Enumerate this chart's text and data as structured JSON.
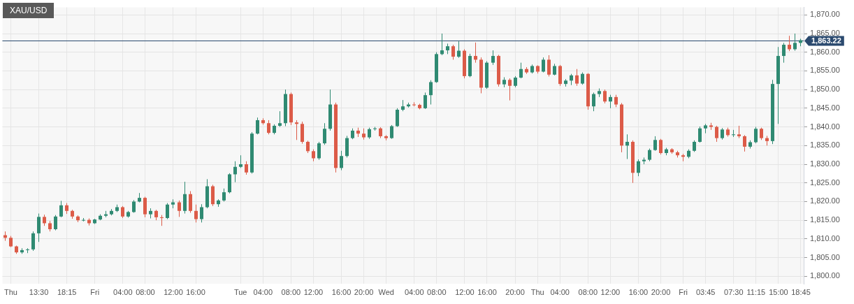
{
  "chart_data": {
    "type": "candlestick",
    "title": "XAU/USD",
    "categories": [
      null,
      "Thu",
      null,
      null,
      null,
      null,
      "13:30",
      null,
      null,
      null,
      null,
      "18:15",
      null,
      null,
      null,
      null,
      "Fri",
      null,
      null,
      null,
      null,
      "04:00",
      null,
      null,
      null,
      "08:00",
      null,
      null,
      null,
      null,
      "12:00",
      null,
      null,
      null,
      "16:00",
      null,
      null,
      null,
      null,
      null,
      null,
      null,
      "Tue",
      null,
      null,
      null,
      "04:00",
      null,
      null,
      null,
      null,
      "08:00",
      null,
      null,
      null,
      "12:00",
      null,
      null,
      null,
      null,
      "16:00",
      null,
      null,
      null,
      "20:00",
      null,
      null,
      null,
      "Wed",
      null,
      null,
      null,
      null,
      "04:00",
      null,
      null,
      null,
      "08:00",
      null,
      null,
      null,
      null,
      "12:00",
      null,
      null,
      null,
      "16:00",
      null,
      null,
      null,
      null,
      "20:00",
      null,
      null,
      null,
      "Thu",
      null,
      null,
      null,
      "04:00",
      null,
      null,
      null,
      null,
      "08:00",
      null,
      null,
      null,
      "12:00",
      null,
      null,
      null,
      null,
      "16:00",
      null,
      null,
      null,
      "20:00",
      null,
      null,
      null,
      "Fri",
      null,
      null,
      null,
      "03:45",
      null,
      null,
      null,
      null,
      "07:30",
      null,
      null,
      null,
      "11:15",
      null,
      null,
      null,
      "15:00",
      null,
      null,
      null,
      "18:45"
    ],
    "ohlc": [
      [
        1811,
        1812,
        1809.5,
        1810.3
      ],
      [
        1810.3,
        1810.8,
        1807.8,
        1808
      ],
      [
        1808,
        1808.2,
        1806,
        1806.4
      ],
      [
        1806.4,
        1807.5,
        1806,
        1807
      ],
      [
        1807,
        1807.5,
        1806.2,
        1807.2
      ],
      [
        1807.2,
        1812,
        1806.8,
        1811.5
      ],
      [
        1811.5,
        1816.8,
        1809.2,
        1815.9
      ],
      [
        1815.9,
        1816.5,
        1813.5,
        1814.2
      ],
      [
        1814.2,
        1814.8,
        1812,
        1812.6
      ],
      [
        1812.6,
        1816.4,
        1812.3,
        1816
      ],
      [
        1816,
        1820.2,
        1815.8,
        1819
      ],
      [
        1819,
        1819.6,
        1816.7,
        1817.5
      ],
      [
        1817.5,
        1817.8,
        1815.4,
        1816
      ],
      [
        1816,
        1816.3,
        1814.5,
        1815
      ],
      [
        1815,
        1815.6,
        1814.7,
        1815.1
      ],
      [
        1815.1,
        1815.5,
        1813.6,
        1814.2
      ],
      [
        1814.2,
        1815.4,
        1814,
        1815.2
      ],
      [
        1815.2,
        1816.6,
        1815,
        1816.2
      ],
      [
        1816.2,
        1817.5,
        1815.8,
        1816.6
      ],
      [
        1816.6,
        1818,
        1816.3,
        1817.5
      ],
      [
        1817.5,
        1819.2,
        1817.2,
        1818.5
      ],
      [
        1818.5,
        1818.8,
        1815.6,
        1816
      ],
      [
        1816,
        1817.5,
        1815.7,
        1817.2
      ],
      [
        1817.2,
        1820.4,
        1817,
        1820
      ],
      [
        1820,
        1822.3,
        1819.8,
        1821
      ],
      [
        1821,
        1821.3,
        1815.8,
        1816.6
      ],
      [
        1816.6,
        1818.2,
        1815.5,
        1817.5
      ],
      [
        1817.5,
        1817.8,
        1815,
        1815.8
      ],
      [
        1815.8,
        1816.4,
        1813.5,
        1815.6
      ],
      [
        1815.6,
        1819.6,
        1815.3,
        1819.2
      ],
      [
        1819.2,
        1820.6,
        1818.2,
        1819.8
      ],
      [
        1819.8,
        1820.3,
        1815.9,
        1817.5
      ],
      [
        1817.5,
        1825.3,
        1816.8,
        1822
      ],
      [
        1822,
        1822.8,
        1817,
        1817.5
      ],
      [
        1817.5,
        1819.2,
        1814.4,
        1815.3
      ],
      [
        1815.3,
        1819.3,
        1814.4,
        1818.5
      ],
      [
        1818.5,
        1826,
        1818.2,
        1824.1
      ],
      [
        1824.1,
        1824.5,
        1818.8,
        1819.3
      ],
      [
        1819.3,
        1820.6,
        1818.6,
        1820.3
      ],
      [
        1820.3,
        1823.5,
        1820,
        1822.5
      ],
      [
        1822.5,
        1827.6,
        1822.2,
        1827.3
      ],
      [
        1827.3,
        1830.8,
        1825.2,
        1829.3
      ],
      [
        1829.3,
        1832.4,
        1829,
        1830
      ],
      [
        1830,
        1830.8,
        1827.2,
        1827.8
      ],
      [
        1827.8,
        1838.6,
        1827.5,
        1838.2
      ],
      [
        1838.2,
        1842.5,
        1838,
        1841.8
      ],
      [
        1841.8,
        1842.3,
        1840.6,
        1841
      ],
      [
        1841,
        1841.8,
        1838,
        1838.4
      ],
      [
        1838.4,
        1840.7,
        1838,
        1840.3
      ],
      [
        1840.3,
        1844.2,
        1840,
        1841
      ],
      [
        1841,
        1850,
        1840.2,
        1848.8
      ],
      [
        1848.8,
        1849.2,
        1840.5,
        1841.2
      ],
      [
        1841.2,
        1841.8,
        1836.5,
        1840.8
      ],
      [
        1840.8,
        1841.4,
        1835.5,
        1836
      ],
      [
        1836,
        1836.3,
        1833,
        1833.5
      ],
      [
        1833.5,
        1834,
        1830.8,
        1831.6
      ],
      [
        1831.6,
        1836,
        1831.2,
        1835.6
      ],
      [
        1835.6,
        1841,
        1835.2,
        1839.5
      ],
      [
        1839.5,
        1850,
        1839,
        1846
      ],
      [
        1846,
        1846.5,
        1827.8,
        1829
      ],
      [
        1829,
        1833.6,
        1828.4,
        1832.2
      ],
      [
        1832.2,
        1837.6,
        1831.8,
        1837
      ],
      [
        1837,
        1839.6,
        1836.7,
        1839
      ],
      [
        1839,
        1839.8,
        1837.3,
        1838.2
      ],
      [
        1838.2,
        1839.6,
        1836.6,
        1837.2
      ],
      [
        1837.2,
        1839.8,
        1836.8,
        1839.4
      ],
      [
        1839.4,
        1840,
        1839,
        1839.6
      ],
      [
        1839.6,
        1839.9,
        1837,
        1837.5
      ],
      [
        1837.5,
        1837.8,
        1836.4,
        1837
      ],
      [
        1837,
        1840.5,
        1836.8,
        1840.2
      ],
      [
        1840.2,
        1845,
        1840,
        1844.6
      ],
      [
        1844.6,
        1847.2,
        1844.2,
        1845.5
      ],
      [
        1845.5,
        1846.5,
        1845.2,
        1846
      ],
      [
        1846,
        1846.6,
        1845.5,
        1845.9
      ],
      [
        1845.9,
        1846.2,
        1844.7,
        1845
      ],
      [
        1845,
        1849.2,
        1844.8,
        1848.5
      ],
      [
        1848.5,
        1852.5,
        1846,
        1852
      ],
      [
        1852,
        1860,
        1851.8,
        1859.5
      ],
      [
        1859.5,
        1865,
        1859.2,
        1860.5
      ],
      [
        1860.5,
        1862.3,
        1859.5,
        1861.6
      ],
      [
        1861.6,
        1862,
        1858,
        1858.8
      ],
      [
        1858.8,
        1862.9,
        1858.5,
        1860.4
      ],
      [
        1860.4,
        1860.8,
        1853,
        1853.6
      ],
      [
        1853.6,
        1859.6,
        1853.3,
        1859
      ],
      [
        1859,
        1862.6,
        1857.2,
        1858
      ],
      [
        1858,
        1858.6,
        1849,
        1850.5
      ],
      [
        1850.5,
        1857.6,
        1850.2,
        1857.2
      ],
      [
        1857.2,
        1860.5,
        1856.6,
        1859
      ],
      [
        1859,
        1859.3,
        1850.8,
        1851.4
      ],
      [
        1851.4,
        1853.3,
        1850.6,
        1852.6
      ],
      [
        1852.6,
        1853,
        1847.1,
        1851
      ],
      [
        1851,
        1853.6,
        1850.6,
        1853.2
      ],
      [
        1853.2,
        1857.2,
        1853,
        1855.5
      ],
      [
        1855.5,
        1856,
        1854.2,
        1854.6
      ],
      [
        1854.6,
        1856.7,
        1854.3,
        1856.3
      ],
      [
        1856.3,
        1856.5,
        1854.3,
        1854.8
      ],
      [
        1854.8,
        1858.6,
        1854.6,
        1858
      ],
      [
        1858,
        1859.2,
        1853.5,
        1854
      ],
      [
        1854,
        1856.9,
        1853.8,
        1856.3
      ],
      [
        1856.3,
        1856.6,
        1851,
        1851.5
      ],
      [
        1851.5,
        1852.8,
        1850.8,
        1852.4
      ],
      [
        1852.4,
        1854.2,
        1851.2,
        1853.8
      ],
      [
        1853.8,
        1855.5,
        1851,
        1851.6
      ],
      [
        1851.6,
        1854.6,
        1851.3,
        1854.2
      ],
      [
        1854.2,
        1854.4,
        1844.6,
        1845.5
      ],
      [
        1845.5,
        1849.2,
        1844.2,
        1848.8
      ],
      [
        1848.8,
        1850.3,
        1848,
        1849.6
      ],
      [
        1849.6,
        1850,
        1846.3,
        1846.8
      ],
      [
        1846.8,
        1848.6,
        1845,
        1848
      ],
      [
        1848,
        1848.6,
        1845.3,
        1846
      ],
      [
        1846,
        1846.4,
        1833.2,
        1835
      ],
      [
        1835,
        1838,
        1831.4,
        1836
      ],
      [
        1836,
        1836.4,
        1825,
        1827.7
      ],
      [
        1827.7,
        1831.3,
        1826.8,
        1830.8
      ],
      [
        1830.8,
        1831.8,
        1830,
        1831.2
      ],
      [
        1831.2,
        1834.2,
        1830.8,
        1833.8
      ],
      [
        1833.8,
        1837.5,
        1833.6,
        1836.5
      ],
      [
        1836.5,
        1836.8,
        1832.6,
        1833
      ],
      [
        1833,
        1834.4,
        1832.4,
        1834
      ],
      [
        1834,
        1834.3,
        1832.8,
        1833.2
      ],
      [
        1833.2,
        1833.6,
        1831.8,
        1832.4
      ],
      [
        1832.4,
        1832.8,
        1830.8,
        1832
      ],
      [
        1832,
        1834,
        1831.6,
        1833.6
      ],
      [
        1833.6,
        1836.4,
        1833.3,
        1836
      ],
      [
        1836,
        1840.1,
        1835.8,
        1839.6
      ],
      [
        1839.6,
        1840.8,
        1838.3,
        1840.4
      ],
      [
        1840.4,
        1841.1,
        1839.2,
        1840
      ],
      [
        1840,
        1840.3,
        1836,
        1837
      ],
      [
        1837,
        1839.7,
        1836.6,
        1839.3
      ],
      [
        1839.3,
        1839.8,
        1837.4,
        1837.8
      ],
      [
        1837.8,
        1839.2,
        1837.3,
        1838
      ],
      [
        1838,
        1840.3,
        1837,
        1837.5
      ],
      [
        1837.5,
        1837.8,
        1833.4,
        1834.7
      ],
      [
        1834.7,
        1836.4,
        1834.2,
        1835.9
      ],
      [
        1835.9,
        1840,
        1835.6,
        1839.5
      ],
      [
        1839.5,
        1839.8,
        1836.5,
        1837
      ],
      [
        1837,
        1837.6,
        1835,
        1836.2
      ],
      [
        1836.2,
        1852.6,
        1835.4,
        1851.5
      ],
      [
        1851.5,
        1861.4,
        1840.8,
        1859
      ],
      [
        1859,
        1862.5,
        1857.2,
        1862
      ],
      [
        1862,
        1864.4,
        1860.3,
        1860.8
      ],
      [
        1860.8,
        1865,
        1860.4,
        1862.5
      ],
      [
        1862.5,
        1863.6,
        1861.6,
        1863.22
      ]
    ],
    "colors": [
      "#dc5b48",
      "#dc5b48",
      "#dc5b48",
      "#2f8a72",
      "#2f8a72",
      "#2f8a72",
      "#2f8a72",
      "#dc5b48",
      "#dc5b48",
      "#2f8a72",
      "#2f8a72",
      "#dc5b48",
      "#dc5b48",
      "#dc5b48",
      "#2f8a72",
      "#dc5b48",
      "#2f8a72",
      "#2f8a72",
      "#2f8a72",
      "#2f8a72",
      "#2f8a72",
      "#dc5b48",
      "#2f8a72",
      "#2f8a72",
      "#2f8a72",
      "#dc5b48",
      "#2f8a72",
      "#dc5b48",
      "#dc5b48",
      "#2f8a72",
      "#2f8a72",
      "#dc5b48",
      "#2f8a72",
      "#dc5b48",
      "#dc5b48",
      "#2f8a72",
      "#2f8a72",
      "#dc5b48",
      "#2f8a72",
      "#2f8a72",
      "#2f8a72",
      "#2f8a72",
      "#2f8a72",
      "#dc5b48",
      "#2f8a72",
      "#2f8a72",
      "#dc5b48",
      "#dc5b48",
      "#2f8a72",
      "#2f8a72",
      "#2f8a72",
      "#dc5b48",
      "#dc5b48",
      "#dc5b48",
      "#dc5b48",
      "#dc5b48",
      "#2f8a72",
      "#2f8a72",
      "#2f8a72",
      "#dc5b48",
      "#2f8a72",
      "#2f8a72",
      "#2f8a72",
      "#dc5b48",
      "#dc5b48",
      "#2f8a72",
      "#2f8a72",
      "#dc5b48",
      "#dc5b48",
      "#2f8a72",
      "#2f8a72",
      "#2f8a72",
      "#2f8a72",
      "#dc5b48",
      "#dc5b48",
      "#2f8a72",
      "#2f8a72",
      "#2f8a72",
      "#2f8a72",
      "#2f8a72",
      "#dc5b48",
      "#2f8a72",
      "#dc5b48",
      "#2f8a72",
      "#dc5b48",
      "#dc5b48",
      "#2f8a72",
      "#2f8a72",
      "#dc5b48",
      "#2f8a72",
      "#dc5b48",
      "#2f8a72",
      "#2f8a72",
      "#dc5b48",
      "#2f8a72",
      "#dc5b48",
      "#2f8a72",
      "#dc5b48",
      "#2f8a72",
      "#dc5b48",
      "#2f8a72",
      "#2f8a72",
      "#dc5b48",
      "#2f8a72",
      "#dc5b48",
      "#2f8a72",
      "#2f8a72",
      "#dc5b48",
      "#2f8a72",
      "#dc5b48",
      "#dc5b48",
      "#2f8a72",
      "#dc5b48",
      "#2f8a72",
      "#2f8a72",
      "#2f8a72",
      "#2f8a72",
      "#dc5b48",
      "#2f8a72",
      "#dc5b48",
      "#dc5b48",
      "#dc5b48",
      "#2f8a72",
      "#2f8a72",
      "#2f8a72",
      "#2f8a72",
      "#dc5b48",
      "#dc5b48",
      "#2f8a72",
      "#dc5b48",
      "#2f8a72",
      "#dc5b48",
      "#dc5b48",
      "#2f8a72",
      "#2f8a72",
      "#dc5b48",
      "#dc5b48",
      "#2f8a72",
      "#2f8a72",
      "#2f8a72",
      "#dc5b48",
      "#2f8a72",
      "#2f8a72"
    ],
    "ylim": [
      1798,
      1872
    ],
    "yticks": [
      {
        "value": 1800,
        "label": "1,800.00"
      },
      {
        "value": 1805,
        "label": "1,805.00"
      },
      {
        "value": 1810,
        "label": "1,810.00"
      },
      {
        "value": 1815,
        "label": "1,815.00"
      },
      {
        "value": 1820,
        "label": "1,820.00"
      },
      {
        "value": 1825,
        "label": "1,825.00"
      },
      {
        "value": 1830,
        "label": "1,830.00"
      },
      {
        "value": 1835,
        "label": "1,835.00"
      },
      {
        "value": 1840,
        "label": "1,840.00"
      },
      {
        "value": 1845,
        "label": "1,845.00"
      },
      {
        "value": 1850,
        "label": "1,850.00"
      },
      {
        "value": 1855,
        "label": "1,855.00"
      },
      {
        "value": 1860,
        "label": "1,860.00"
      },
      {
        "value": 1865,
        "label": "1,865.00"
      },
      {
        "value": 1870,
        "label": "1,870.00"
      }
    ],
    "grid": true,
    "ref_lines": [
      {
        "axis": "y",
        "value": 1863.22,
        "label": "1,863.22",
        "color": "#2b4a6f"
      }
    ]
  }
}
